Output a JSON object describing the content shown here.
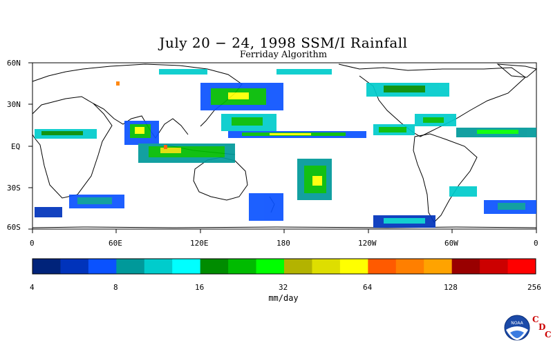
{
  "title": "July 20 − 24, 1998 SSM/I Rainfall",
  "subtitle": "Ferriday Algorithm",
  "map": {
    "lat_labels": [
      "60N",
      "30N",
      "EQ",
      "30S",
      "60S"
    ],
    "lon_labels": [
      "0",
      "60E",
      "120E",
      "180",
      "120W",
      "60W",
      "0"
    ],
    "lat_range": [
      -60,
      60
    ],
    "lon_range": [
      0,
      360
    ]
  },
  "colorbar": {
    "colors": [
      "#00237a",
      "#0033bb",
      "#0a52ff",
      "#00999a",
      "#00cccc",
      "#00ffff",
      "#008c00",
      "#00bb00",
      "#00ff00",
      "#b3b300",
      "#dede00",
      "#ffff00",
      "#ff5a00",
      "#ff7f00",
      "#ffa300",
      "#990000",
      "#cc0000",
      "#ff0000"
    ],
    "tick_labels": [
      "4",
      "8",
      "16",
      "32",
      "64",
      "128",
      "256"
    ],
    "units": "mm/day"
  },
  "logo": {
    "noaa_text": "NOAA",
    "cdc_letters": [
      "C",
      "D",
      "C"
    ]
  }
}
